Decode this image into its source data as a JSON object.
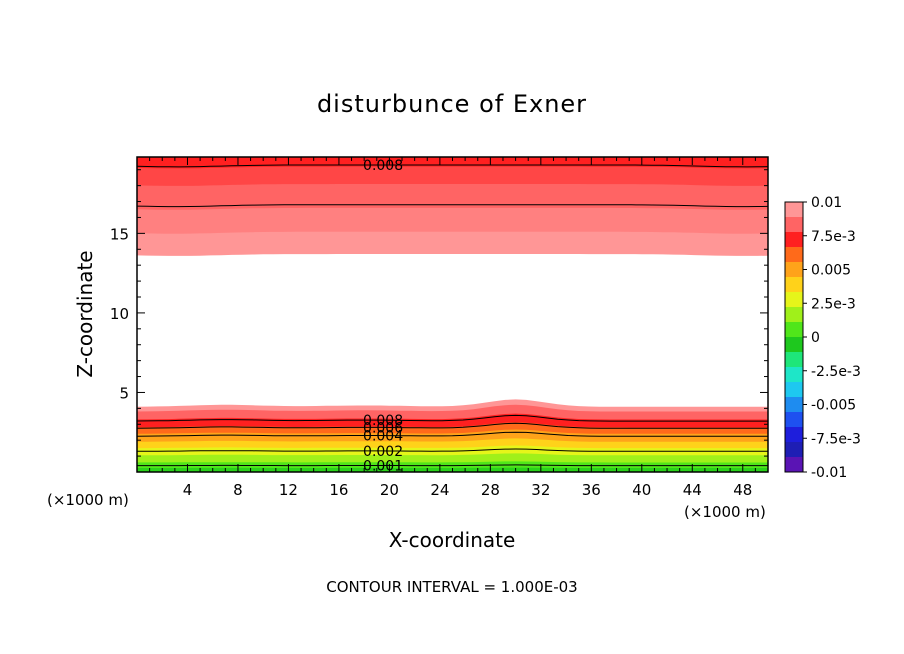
{
  "chart_data": {
    "type": "heatmap",
    "title": "disturbunce of Exner",
    "xlabel": "X-coordinate",
    "ylabel": "Z-coordinate",
    "x_unit_left": "(×1000 m)",
    "x_unit_right": "(×1000 m)",
    "footer": "CONTOUR INTERVAL = 1.000E-03",
    "xlim": [
      0,
      50
    ],
    "ylim": [
      0,
      19.8
    ],
    "x_ticks": [
      4,
      8,
      12,
      16,
      20,
      24,
      28,
      32,
      36,
      40,
      44,
      48
    ],
    "x_tick_labels": [
      "4",
      "8",
      "12",
      "16",
      "20",
      "24",
      "28",
      "32",
      "36",
      "40",
      "44",
      "48"
    ],
    "y_ticks": [
      5,
      10,
      15
    ],
    "y_tick_labels": [
      "5",
      "10",
      "15"
    ],
    "contour_interval": 0.001,
    "upper_fill": [
      {
        "z": 13.7,
        "color": "#ff9696"
      },
      {
        "z": 15.1,
        "color": "#ff8080"
      },
      {
        "z": 16.6,
        "color": "#ff6464"
      },
      {
        "z": 18.1,
        "color": "#ff4646"
      },
      {
        "z": 19.2,
        "color": "#ff2020"
      }
    ],
    "upper_contours": [
      {
        "z": 16.8,
        "label": ""
      },
      {
        "z": 19.3,
        "label": "0.008"
      }
    ],
    "lower_fill": [
      {
        "z": 4.1,
        "color": "#ff9696"
      },
      {
        "z": 3.8,
        "color": "#ff6464"
      },
      {
        "z": 3.3,
        "color": "#ff2020"
      },
      {
        "z": 2.8,
        "color": "#ff6a1a"
      },
      {
        "z": 2.4,
        "color": "#ffa31a"
      },
      {
        "z": 1.9,
        "color": "#ffd21a"
      },
      {
        "z": 1.5,
        "color": "#e6f51a"
      },
      {
        "z": 1.05,
        "color": "#a0f01a"
      },
      {
        "z": 0.6,
        "color": "#50e61a"
      },
      {
        "z": 0.25,
        "color": "#2ad21a"
      }
    ],
    "lower_contours": [
      {
        "z": 3.2,
        "label": "0.008"
      },
      {
        "z": 2.75,
        "label": "0.006"
      },
      {
        "z": 2.25,
        "label": "0.004"
      },
      {
        "z": 1.3,
        "label": "0.002"
      },
      {
        "z": 0.4,
        "label": "0.001"
      }
    ],
    "colorbar": {
      "labels": [
        "0.01",
        "7.5e-3",
        "0.005",
        "2.5e-3",
        "0",
        "-2.5e-3",
        "-0.005",
        "-7.5e-3",
        "-0.01"
      ],
      "colors": [
        "#ff9696",
        "#ff6464",
        "#ff2020",
        "#ff6a1a",
        "#ffa31a",
        "#ffd21a",
        "#e6f51a",
        "#a0f01a",
        "#50e61a",
        "#1ec81e",
        "#1ee67a",
        "#1ee6c8",
        "#1ec8f0",
        "#1e8cf0",
        "#1e50f0",
        "#1e1edc",
        "#1e1eb4",
        "#5a14b4"
      ]
    }
  }
}
